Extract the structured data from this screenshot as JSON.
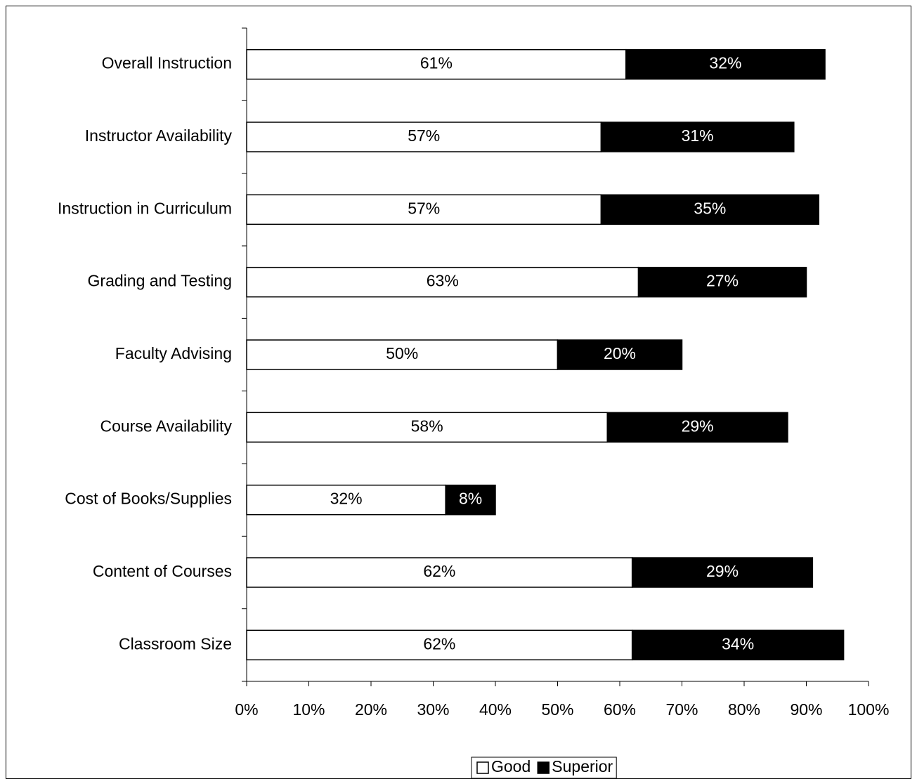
{
  "chart_data": {
    "type": "stacked_bar_horizontal",
    "categories": [
      "Overall Instruction",
      "Instructor Availability",
      "Instruction in Curriculum",
      "Grading and Testing",
      "Faculty Advising",
      "Course Availability",
      "Cost of Books/Supplies",
      "Content of Courses",
      "Classroom Size"
    ],
    "series": [
      {
        "name": "Good",
        "color": "#ffffff",
        "label_color": "#000000",
        "values": [
          61,
          57,
          57,
          63,
          50,
          58,
          32,
          62,
          62
        ],
        "value_labels": [
          "61%",
          "57%",
          "57%",
          "63%",
          "50%",
          "58%",
          "32%",
          "62%",
          "62%"
        ]
      },
      {
        "name": "Superior",
        "color": "#000000",
        "label_color": "#ffffff",
        "values": [
          32,
          31,
          35,
          27,
          20,
          29,
          8,
          29,
          34
        ],
        "value_labels": [
          "32%",
          "31%",
          "35%",
          "27%",
          "20%",
          "29%",
          "8%",
          "29%",
          "34%"
        ]
      }
    ],
    "xlim": [
      0,
      100
    ],
    "xticks": [
      {
        "value": 0,
        "label": "0%"
      },
      {
        "value": 10,
        "label": "10%"
      },
      {
        "value": 20,
        "label": "20%"
      },
      {
        "value": 30,
        "label": "30%"
      },
      {
        "value": 40,
        "label": "40%"
      },
      {
        "value": 50,
        "label": "50%"
      },
      {
        "value": 60,
        "label": "60%"
      },
      {
        "value": 70,
        "label": "70%"
      },
      {
        "value": 80,
        "label": "80%"
      },
      {
        "value": 90,
        "label": "90%"
      },
      {
        "value": 100,
        "label": "100%"
      }
    ],
    "legend": "bottom"
  }
}
